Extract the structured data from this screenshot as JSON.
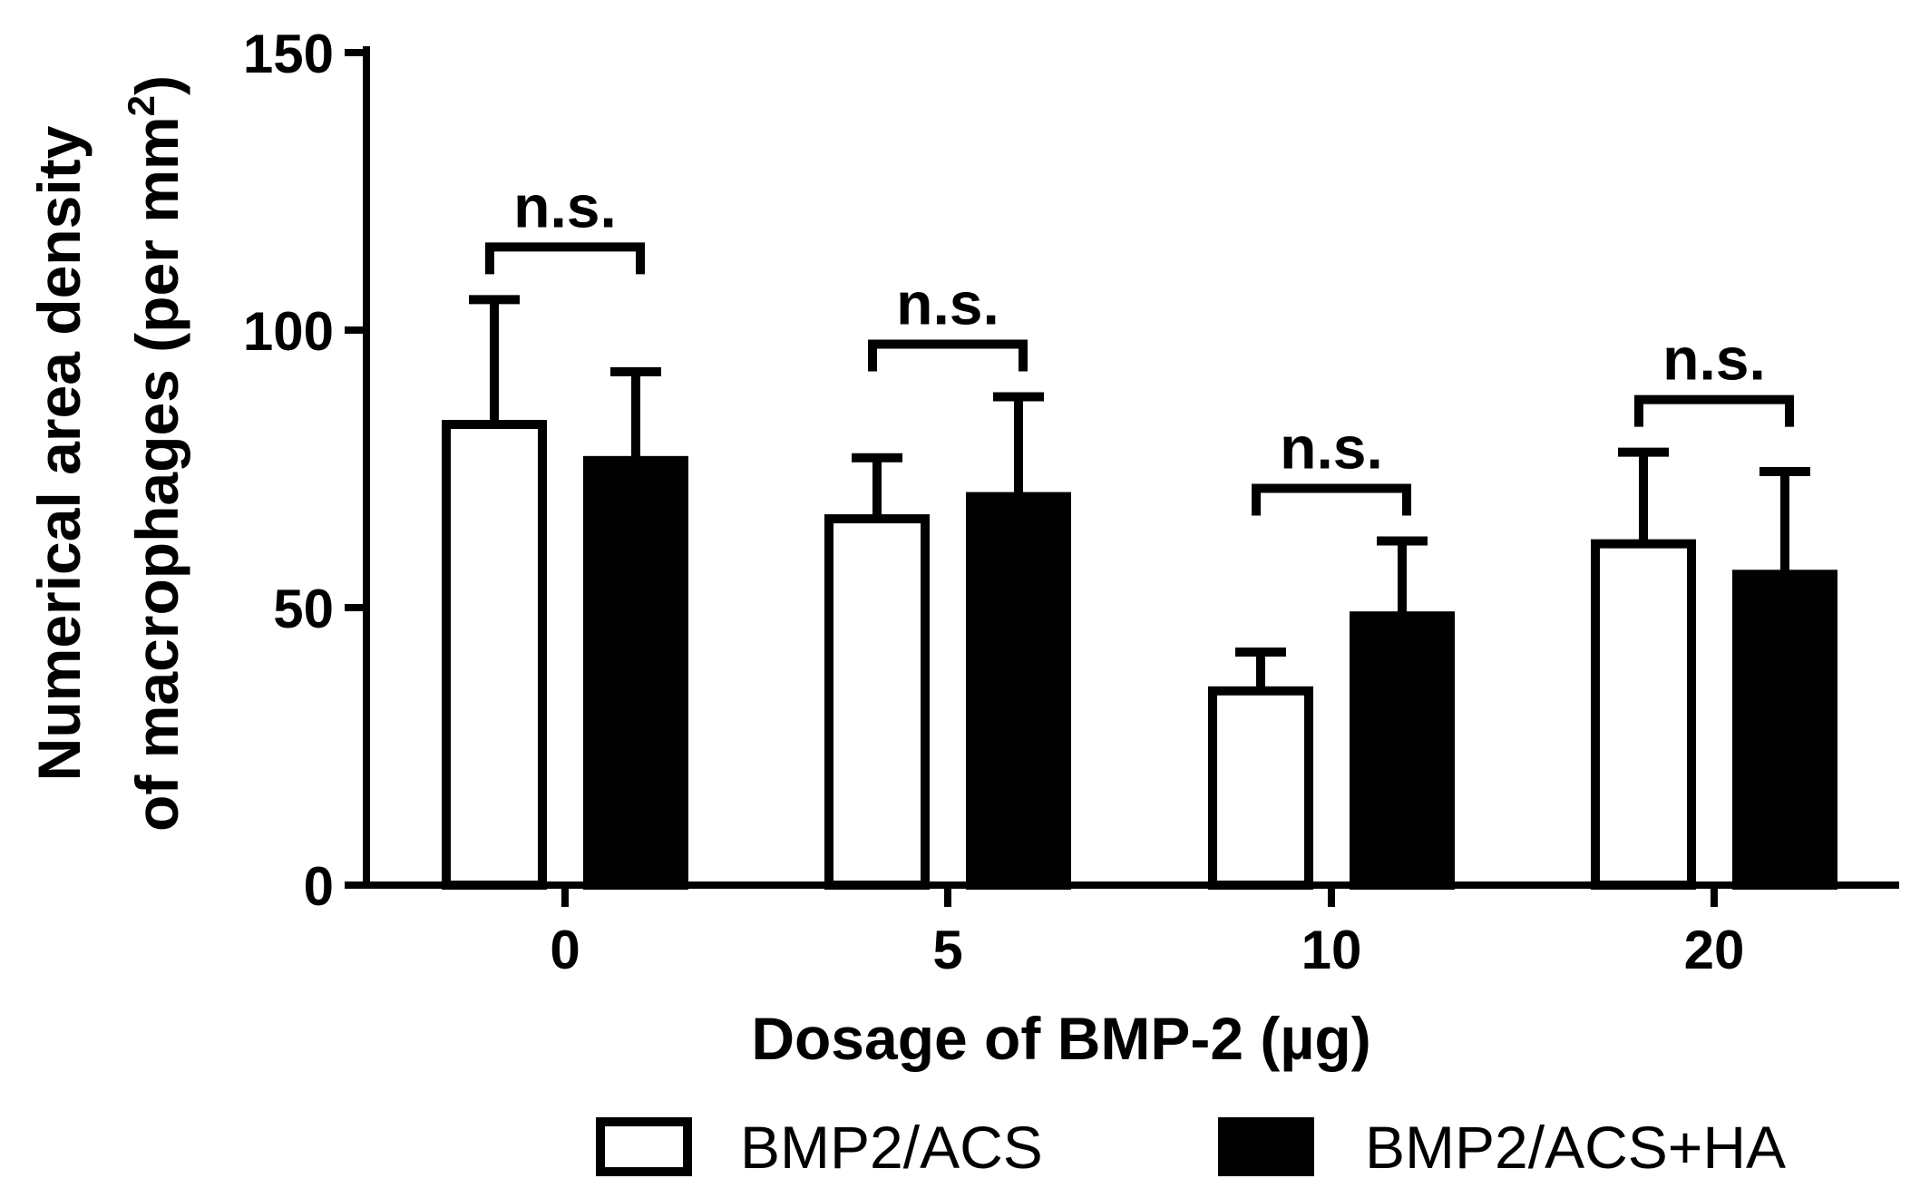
{
  "chart_data": {
    "type": "bar",
    "categories": [
      "0",
      "5",
      "10",
      "20"
    ],
    "series": [
      {
        "name": "BMP2/ACS",
        "style": "open",
        "values": [
          83,
          66,
          35,
          61.5
        ],
        "errors": [
          22.5,
          11,
          7,
          16.5
        ]
      },
      {
        "name": "BMP2/ACS+HA",
        "style": "filled",
        "values": [
          76.5,
          70,
          48.5,
          56
        ],
        "errors": [
          16,
          18,
          13.5,
          18.5
        ]
      }
    ],
    "significance": [
      "n.s.",
      "n.s.",
      "n.s.",
      "n.s."
    ],
    "xlabel": "Dosage of BMP-2 (µg)",
    "ylabel_line1": "Numerical area density",
    "ylabel_line2_main": "of macrophages (per mm",
    "ylabel_line2_sup": "2",
    "ylabel_line2_end": ")",
    "yticks": [
      "0",
      "50",
      "100",
      "150"
    ],
    "ytick_values": [
      0,
      50,
      100,
      150
    ],
    "ylim": [
      0,
      150
    ],
    "legend_position": "bottom",
    "grid": false,
    "colors": {
      "open_fill": "#ffffff",
      "filled_fill": "#000000",
      "stroke": "#000000"
    }
  }
}
